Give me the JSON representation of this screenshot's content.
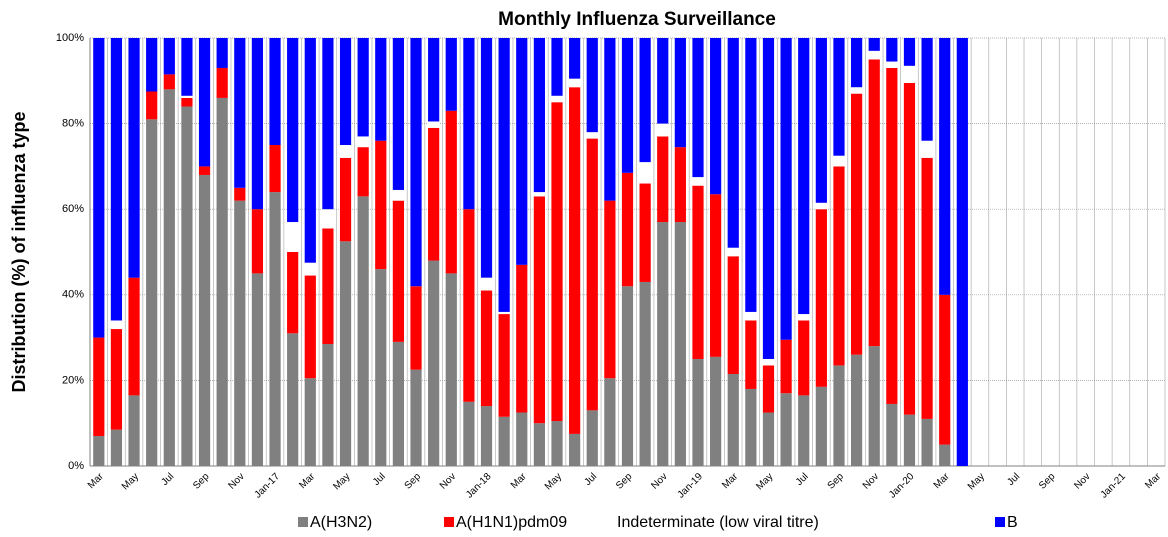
{
  "chart_data": {
    "type": "stacked_bar",
    "title": "Monthly Influenza Surveillance",
    "y_label": "Distribution (%) of influenza  type",
    "categories": [
      "Mar",
      null,
      "May",
      null,
      "Jul",
      null,
      "Sep",
      null,
      "Nov",
      null,
      "Jan-17",
      null,
      "Mar",
      null,
      "May",
      null,
      "Jul",
      null,
      "Sep",
      null,
      "Nov",
      null,
      "Jan-18",
      null,
      "Mar",
      null,
      "May",
      null,
      "Jul",
      null,
      "Sep",
      null,
      "Nov",
      null,
      "Jan-19",
      null,
      "Mar",
      null,
      "May",
      null,
      "Jul",
      null,
      "Sep",
      null,
      "Nov",
      null,
      "Jan-20",
      null,
      "Mar",
      null,
      "May",
      null,
      "Jul",
      null,
      "Sep",
      null,
      "Nov",
      null,
      "Jan-21",
      null,
      "Mar"
    ],
    "series": [
      {
        "name": "A(H3N2)",
        "color": "#808080",
        "values": [
          7,
          8.5,
          16.5,
          81,
          88,
          84,
          68,
          86,
          62,
          45,
          64,
          31,
          20.5,
          28.5,
          52.5,
          63,
          46,
          29,
          22.5,
          48,
          45,
          15,
          14,
          11.5,
          12.5,
          10,
          10.5,
          7.5,
          13,
          20.5,
          42,
          43,
          57,
          57,
          25,
          25.5,
          21.5,
          18,
          12.5,
          17,
          16.5,
          18.5,
          23.5,
          26,
          28,
          14.5,
          12,
          11,
          5,
          0,
          null,
          null,
          null,
          null,
          null,
          null,
          null,
          null,
          null,
          null,
          null
        ]
      },
      {
        "name": "A(H1N1)pdm09",
        "color": "#ff0000",
        "values": [
          23,
          23.5,
          27.5,
          6.5,
          3.5,
          2,
          2,
          7,
          3,
          15,
          11,
          19,
          24,
          27,
          19.5,
          11.5,
          30,
          33,
          19.5,
          31,
          38,
          45,
          27,
          24,
          34.5,
          53,
          74.5,
          81,
          63.5,
          41.5,
          26.5,
          23,
          20,
          17.5,
          40.5,
          38,
          27.5,
          16,
          11,
          12.5,
          17.5,
          41.5,
          46.5,
          61,
          67,
          78.5,
          77.5,
          61,
          35,
          0,
          null,
          null,
          null,
          null,
          null,
          null,
          null,
          null,
          null,
          null,
          null
        ]
      },
      {
        "name": "Indeterminate (low viral titre)",
        "color": "#ffffff",
        "values": [
          0,
          2,
          0,
          0,
          0,
          0.5,
          0,
          0,
          0,
          0,
          0,
          7,
          3,
          4.5,
          3,
          2.5,
          0,
          2.5,
          0,
          1.5,
          0,
          0,
          3,
          0.5,
          0,
          1,
          1.5,
          2,
          1.5,
          0,
          0,
          5,
          3,
          0,
          2,
          0,
          2,
          2,
          1.5,
          0,
          1.5,
          1.5,
          2.5,
          1.5,
          2,
          1.5,
          4,
          4,
          0,
          0,
          null,
          null,
          null,
          null,
          null,
          null,
          null,
          null,
          null,
          null,
          null
        ]
      },
      {
        "name": "B",
        "color": "#0000ff",
        "values": [
          70,
          66,
          56,
          12.5,
          8.5,
          13.5,
          30,
          7,
          35,
          40,
          25,
          43,
          52.5,
          40,
          25,
          23,
          24,
          35.5,
          58,
          19.5,
          17,
          40,
          56,
          64,
          53,
          36,
          13.5,
          9.5,
          22,
          38,
          31.5,
          29,
          20,
          25.5,
          32.5,
          36.5,
          49,
          64,
          75,
          70.5,
          64.5,
          38.5,
          27.5,
          11.5,
          3,
          5.5,
          6.5,
          24,
          60,
          100,
          null,
          null,
          null,
          null,
          null,
          null,
          null,
          null,
          null,
          null,
          null
        ]
      }
    ],
    "ylim": [
      0,
      100
    ],
    "yticks": [
      {
        "value": 0,
        "label": "0%"
      },
      {
        "value": 20,
        "label": "20%"
      },
      {
        "value": 40,
        "label": "40%"
      },
      {
        "value": 60,
        "label": "60%"
      },
      {
        "value": 80,
        "label": "80%"
      },
      {
        "value": 100,
        "label": "100%"
      }
    ],
    "grid": true,
    "legend": "bottom"
  }
}
